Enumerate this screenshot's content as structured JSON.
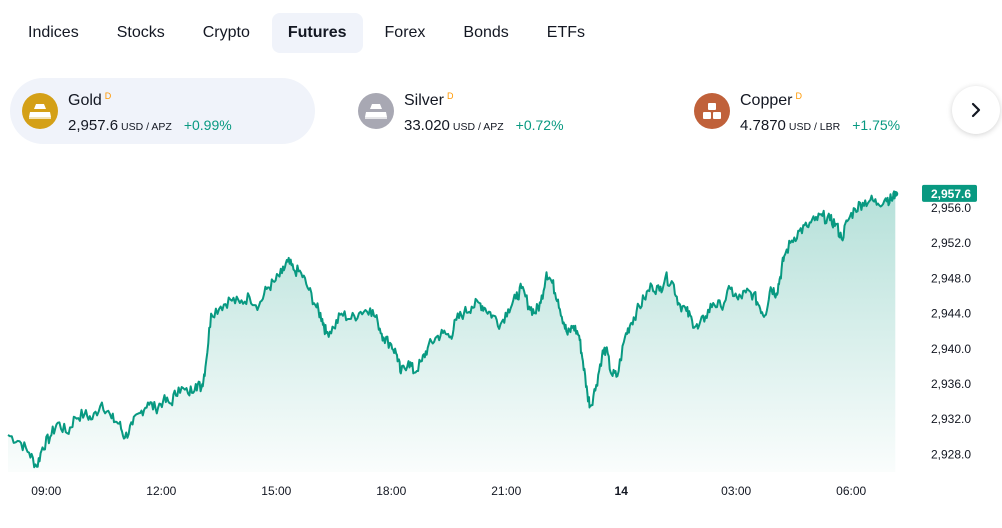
{
  "tabs": [
    {
      "label": "Indices",
      "active": false
    },
    {
      "label": "Stocks",
      "active": false
    },
    {
      "label": "Crypto",
      "active": false
    },
    {
      "label": "Futures",
      "active": true
    },
    {
      "label": "Forex",
      "active": false
    },
    {
      "label": "Bonds",
      "active": false
    },
    {
      "label": "ETFs",
      "active": false
    }
  ],
  "cards": [
    {
      "name": "Gold",
      "badge": "D",
      "price": "2,957.6",
      "unit": "USD / APZ",
      "change": "+0.99%",
      "icon": "gold-bars-icon",
      "icon_color": "#d4a017",
      "active": true
    },
    {
      "name": "Silver",
      "badge": "D",
      "price": "33.020",
      "unit": "USD / APZ",
      "change": "+0.72%",
      "icon": "silver-bars-icon",
      "icon_color": "#a8a8b3",
      "active": false
    },
    {
      "name": "Copper",
      "badge": "D",
      "price": "4.7870",
      "unit": "USD / LBR",
      "change": "+1.75%",
      "icon": "copper-bars-icon",
      "icon_color": "#c0613a",
      "active": false
    }
  ],
  "colors": {
    "up": "#089981",
    "line": "#089981",
    "fill_top": "#089981"
  },
  "chart_data": {
    "type": "area",
    "last_price_label": "2,957.6",
    "x_ticks": [
      "09:00",
      "12:00",
      "15:00",
      "18:00",
      "21:00",
      "14",
      "03:00",
      "06:00"
    ],
    "x_tick_hours": [
      9,
      12,
      15,
      18,
      21,
      24,
      27,
      30
    ],
    "y_ticks": [
      "2,928.0",
      "2,932.0",
      "2,936.0",
      "2,940.0",
      "2,944.0",
      "2,948.0",
      "2,952.0",
      "2,956.0"
    ],
    "y_tick_values": [
      2928,
      2932,
      2936,
      2940,
      2944,
      2948,
      2952,
      2956
    ],
    "ylim": [
      2926.0,
      2958.5
    ],
    "xlim": [
      8.0,
      31.3
    ],
    "series": [
      {
        "points": [
          [
            8.0,
            2930.2
          ],
          [
            8.3,
            2929.5
          ],
          [
            8.55,
            2928.2
          ],
          [
            8.75,
            2926.6
          ],
          [
            8.9,
            2928.8
          ],
          [
            9.1,
            2930.0
          ],
          [
            9.3,
            2931.6
          ],
          [
            9.55,
            2930.4
          ],
          [
            9.75,
            2932.2
          ],
          [
            10.0,
            2932.6
          ],
          [
            10.2,
            2932.0
          ],
          [
            10.45,
            2933.9
          ],
          [
            10.7,
            2932.1
          ],
          [
            10.9,
            2931.5
          ],
          [
            11.05,
            2929.9
          ],
          [
            11.25,
            2931.4
          ],
          [
            11.45,
            2932.7
          ],
          [
            11.65,
            2933.9
          ],
          [
            11.85,
            2933.2
          ],
          [
            12.05,
            2934.1
          ],
          [
            12.25,
            2933.8
          ],
          [
            12.45,
            2935.6
          ],
          [
            12.7,
            2934.9
          ],
          [
            12.9,
            2936.0
          ],
          [
            13.05,
            2935.6
          ],
          [
            13.15,
            2937.9
          ],
          [
            13.3,
            2944.0
          ],
          [
            13.55,
            2944.8
          ],
          [
            13.8,
            2945.6
          ],
          [
            14.05,
            2945.2
          ],
          [
            14.3,
            2945.9
          ],
          [
            14.55,
            2944.9
          ],
          [
            14.75,
            2946.8
          ],
          [
            14.95,
            2947.6
          ],
          [
            15.15,
            2948.6
          ],
          [
            15.3,
            2949.9
          ],
          [
            15.45,
            2949.0
          ],
          [
            15.65,
            2948.6
          ],
          [
            15.85,
            2946.7
          ],
          [
            16.05,
            2944.7
          ],
          [
            16.2,
            2943.4
          ],
          [
            16.3,
            2941.8
          ],
          [
            16.5,
            2942.4
          ],
          [
            16.7,
            2944.0
          ],
          [
            16.95,
            2943.4
          ],
          [
            17.2,
            2944.2
          ],
          [
            17.45,
            2944.6
          ],
          [
            17.65,
            2943.0
          ],
          [
            17.8,
            2941.3
          ],
          [
            18.0,
            2940.5
          ],
          [
            18.15,
            2939.3
          ],
          [
            18.25,
            2937.2
          ],
          [
            18.45,
            2938.6
          ],
          [
            18.6,
            2937.3
          ],
          [
            18.8,
            2938.6
          ],
          [
            18.95,
            2940.1
          ],
          [
            19.15,
            2941.2
          ],
          [
            19.35,
            2941.8
          ],
          [
            19.55,
            2941.4
          ],
          [
            19.7,
            2943.3
          ],
          [
            19.9,
            2944.1
          ],
          [
            20.1,
            2944.8
          ],
          [
            20.3,
            2945.2
          ],
          [
            20.45,
            2944.6
          ],
          [
            20.65,
            2943.8
          ],
          [
            20.85,
            2942.8
          ],
          [
            21.05,
            2944.5
          ],
          [
            21.25,
            2945.7
          ],
          [
            21.4,
            2946.9
          ],
          [
            21.6,
            2944.8
          ],
          [
            21.75,
            2944.1
          ],
          [
            21.9,
            2945.2
          ],
          [
            22.05,
            2948.7
          ],
          [
            22.2,
            2947.5
          ],
          [
            22.35,
            2945.6
          ],
          [
            22.5,
            2943.0
          ],
          [
            22.6,
            2941.6
          ],
          [
            22.75,
            2942.6
          ],
          [
            22.9,
            2941.5
          ],
          [
            23.0,
            2938.6
          ],
          [
            23.12,
            2934.8
          ],
          [
            23.2,
            2933.5
          ],
          [
            23.35,
            2935.9
          ],
          [
            23.5,
            2939.3
          ],
          [
            23.6,
            2940.0
          ],
          [
            23.75,
            2937.1
          ],
          [
            23.9,
            2936.9
          ],
          [
            24.1,
            2941.4
          ],
          [
            24.25,
            2942.9
          ],
          [
            24.4,
            2944.2
          ],
          [
            24.6,
            2945.7
          ],
          [
            24.8,
            2947.2
          ],
          [
            25.0,
            2946.6
          ],
          [
            25.15,
            2948.1
          ],
          [
            25.35,
            2947.5
          ],
          [
            25.5,
            2945.2
          ],
          [
            25.7,
            2944.3
          ],
          [
            25.85,
            2943.2
          ],
          [
            26.0,
            2942.3
          ],
          [
            26.2,
            2943.7
          ],
          [
            26.4,
            2945.2
          ],
          [
            26.6,
            2944.8
          ],
          [
            26.85,
            2946.8
          ],
          [
            27.05,
            2945.6
          ],
          [
            27.25,
            2946.4
          ],
          [
            27.45,
            2946.2
          ],
          [
            27.6,
            2944.9
          ],
          [
            27.75,
            2943.8
          ],
          [
            27.9,
            2947.0
          ],
          [
            28.05,
            2946.3
          ],
          [
            28.15,
            2948.2
          ],
          [
            28.25,
            2950.5
          ],
          [
            28.45,
            2952.3
          ],
          [
            28.65,
            2953.4
          ],
          [
            28.85,
            2953.9
          ],
          [
            29.05,
            2954.6
          ],
          [
            29.25,
            2955.1
          ],
          [
            29.45,
            2954.6
          ],
          [
            29.6,
            2954.2
          ],
          [
            29.75,
            2952.5
          ],
          [
            29.9,
            2954.5
          ],
          [
            30.1,
            2955.9
          ],
          [
            30.3,
            2956.6
          ],
          [
            30.5,
            2956.9
          ],
          [
            30.7,
            2956.5
          ],
          [
            30.9,
            2957.1
          ],
          [
            31.05,
            2956.9
          ],
          [
            31.15,
            2957.6
          ]
        ]
      }
    ]
  }
}
